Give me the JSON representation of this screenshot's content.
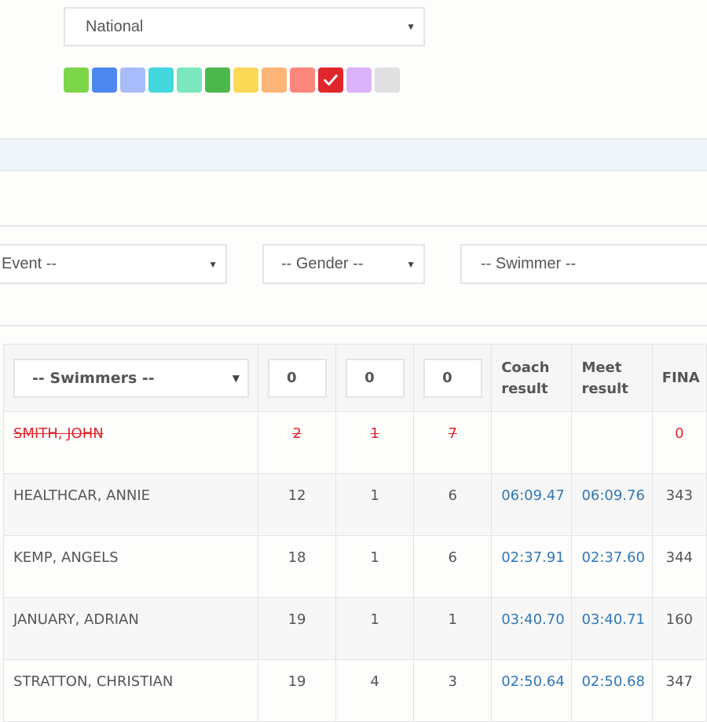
{
  "filters": {
    "level": "National",
    "event": "Event --",
    "gender": "-- Gender --",
    "swimmer": "-- Swimmer --"
  },
  "colors": {
    "swatches": [
      "#7dd64a",
      "#4d87ef",
      "#a8bcfb",
      "#42d8de",
      "#7be7bd",
      "#4cb84b",
      "#fcd956",
      "#fdb577",
      "#fd877a",
      "#e0262b",
      "#dbb3fb",
      "#e0e0e0"
    ],
    "selected_swatch_index": 9,
    "link": "#2f78b7",
    "deleted": "#e0262b"
  },
  "table": {
    "swimmers_select": "-- Swimmers --",
    "filter_inputs": [
      "0",
      "0",
      "0"
    ],
    "headers": {
      "coach_result": "Coach result",
      "meet_result": "Meet result",
      "fina": "FINA"
    },
    "rows": [
      {
        "name": "SMITH, JOHN",
        "a": "2",
        "b": "1",
        "c": "7",
        "coach": "",
        "meet": "",
        "fina": "0",
        "deleted": true
      },
      {
        "name": "HEALTHCAR, ANNIE",
        "a": "12",
        "b": "1",
        "c": "6",
        "coach": "06:09.47",
        "meet": "06:09.76",
        "fina": "343"
      },
      {
        "name": "KEMP, ANGELS",
        "a": "18",
        "b": "1",
        "c": "6",
        "coach": "02:37.91",
        "meet": "02:37.60",
        "fina": "344"
      },
      {
        "name": "JANUARY, ADRIAN",
        "a": "19",
        "b": "1",
        "c": "1",
        "coach": "03:40.70",
        "meet": "03:40.71",
        "fina": "160"
      },
      {
        "name": "STRATTON, CHRISTIAN",
        "a": "19",
        "b": "4",
        "c": "3",
        "coach": "02:50.64",
        "meet": "02:50.68",
        "fina": "347"
      }
    ]
  }
}
